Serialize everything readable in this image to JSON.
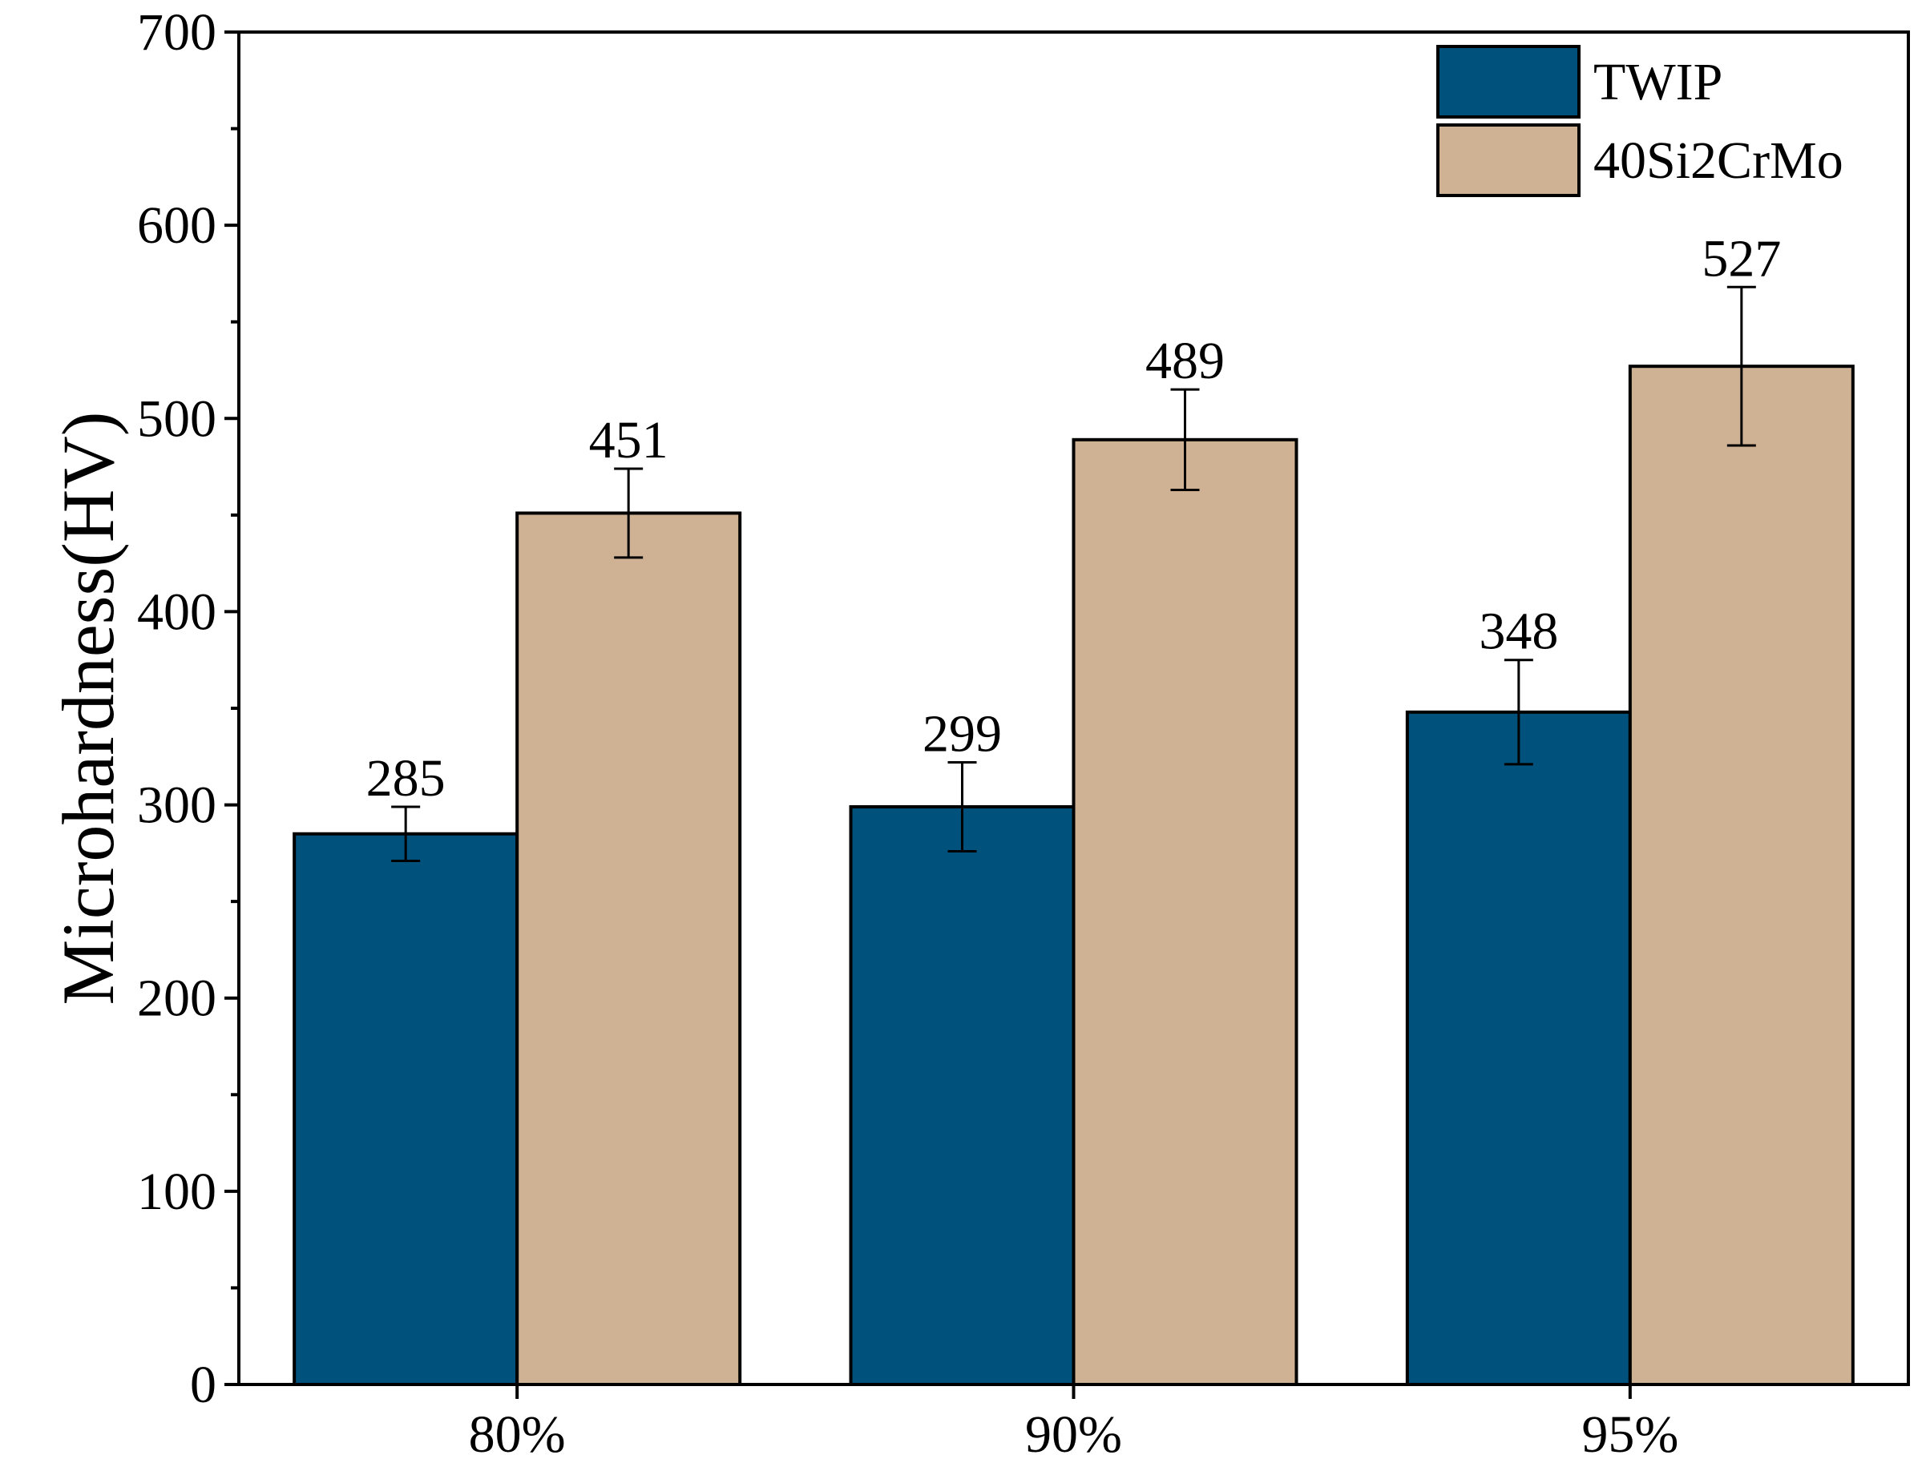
{
  "chart_data": {
    "type": "bar",
    "title": "",
    "xlabel": "",
    "ylabel": "Microhardness(HV)",
    "categories": [
      "80%",
      "90%",
      "95%"
    ],
    "series": [
      {
        "name": "TWIP",
        "color": "#00527d",
        "values": [
          285,
          299,
          348
        ],
        "errors": [
          14,
          23,
          27
        ],
        "labels": [
          "285",
          "299",
          "348"
        ]
      },
      {
        "name": "40Si2CrMo",
        "color": "#cfb194",
        "values": [
          451,
          489,
          527
        ],
        "errors": [
          23,
          26,
          41
        ],
        "labels": [
          "451",
          "489",
          "527"
        ]
      }
    ],
    "ylim": [
      0,
      700
    ],
    "yticks": [
      0,
      100,
      200,
      300,
      400,
      500,
      600,
      700
    ],
    "ytick_labels": [
      "0",
      "100",
      "200",
      "300",
      "400",
      "500",
      "600",
      "700"
    ],
    "ytick_minor_step": 50,
    "grid": false,
    "legend_position": "top-right"
  }
}
